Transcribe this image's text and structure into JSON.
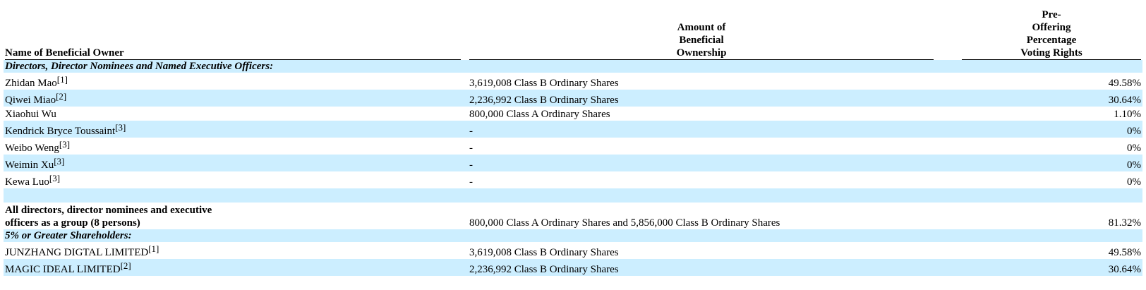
{
  "header": {
    "name_col": "Name of Beneficial Owner",
    "amount_col_lines": [
      "Amount of",
      "Beneficial",
      "Ownership"
    ],
    "pct_col_lines": [
      "Pre-",
      "Offering",
      "Percentage",
      "Voting Rights"
    ]
  },
  "sections": {
    "directors": "Directors, Director Nominees and Named Executive Officers:",
    "shareholders": "5% or Greater Shareholders:"
  },
  "directors": [
    {
      "name": "Zhidan Mao",
      "note": "[1]",
      "amount": "3,619,008 Class B Ordinary Shares",
      "pct": "49.58%"
    },
    {
      "name": "Qiwei Miao",
      "note": "[2]",
      "amount": "2,236,992 Class B Ordinary Shares",
      "pct": "30.64%"
    },
    {
      "name": "Xiaohui Wu",
      "note": "",
      "amount": "800,000 Class A Ordinary Shares",
      "pct": "1.10%"
    },
    {
      "name": "Kendrick Bryce Toussaint",
      "note": "[3]",
      "amount": "-",
      "pct": "0%"
    },
    {
      "name": "Weibo Weng",
      "note": "[3]",
      "amount": "-",
      "pct": "0%"
    },
    {
      "name": "Weimin Xu",
      "note": "[3]",
      "amount": "-",
      "pct": "0%"
    },
    {
      "name": "Kewa Luo",
      "note": "[3]",
      "amount": "-",
      "pct": "0%"
    }
  ],
  "group": {
    "name_line1": "All directors, director nominees and executive",
    "name_line2": "officers as a group (8 persons)",
    "amount": "800,000 Class A Ordinary Shares and 5,856,000 Class B Ordinary Shares",
    "pct": "81.32%"
  },
  "shareholders": [
    {
      "name": "JUNZHANG DIGTAL LIMITED",
      "note": "[1]",
      "amount": "3,619,008 Class B Ordinary Shares",
      "pct": "49.58%"
    },
    {
      "name": "MAGIC IDEAL LIMITED",
      "note": "[2]",
      "amount": "2,236,992 Class B Ordinary Shares",
      "pct": "30.64%"
    }
  ]
}
